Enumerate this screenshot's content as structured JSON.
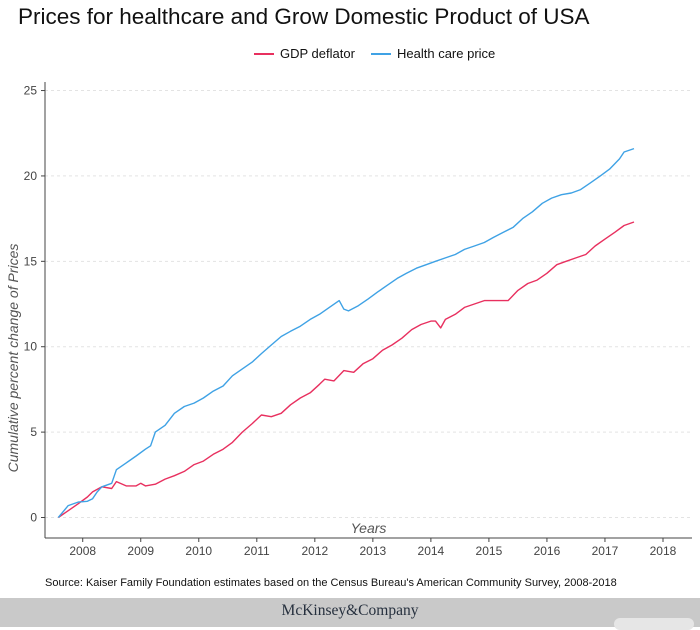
{
  "title": "Prices for healthcare and Grow Domestic Product of USA",
  "legend": [
    {
      "name": "GDP deflator",
      "color": "#e8305f"
    },
    {
      "name": "Health care price",
      "color": "#3fa2e5"
    }
  ],
  "source": "Source: Kaiser Family Foundation estimates based on the Census Bureau's American Community Survey, 2008-2018",
  "footer": {
    "brand": "McKinsey&Company"
  },
  "chart_data": {
    "type": "line",
    "title": "Prices for healthcare and Grow Domestic Product of USA",
    "xlabel": "Years",
    "ylabel": "Cumulative percent change of Prices",
    "xlim": [
      2007.35,
      2018.5
    ],
    "ylim": [
      -1.2,
      25.5
    ],
    "x_ticks": [
      2008,
      2009,
      2010,
      2011,
      2012,
      2013,
      2014,
      2015,
      2016,
      2017,
      2018
    ],
    "y_ticks": [
      0,
      5,
      10,
      15,
      20,
      25
    ],
    "grid": true,
    "legend_position": "top",
    "series": [
      {
        "name": "GDP deflator",
        "color": "#e8305f",
        "points": [
          [
            2007.58,
            0.0
          ],
          [
            2007.75,
            0.4
          ],
          [
            2007.92,
            0.8
          ],
          [
            2008.08,
            1.2
          ],
          [
            2008.17,
            1.5
          ],
          [
            2008.33,
            1.8
          ],
          [
            2008.5,
            1.7
          ],
          [
            2008.58,
            2.1
          ],
          [
            2008.75,
            1.85
          ],
          [
            2008.92,
            1.85
          ],
          [
            2009.0,
            2.0
          ],
          [
            2009.08,
            1.85
          ],
          [
            2009.25,
            1.95
          ],
          [
            2009.42,
            2.25
          ],
          [
            2009.58,
            2.45
          ],
          [
            2009.75,
            2.7
          ],
          [
            2009.92,
            3.1
          ],
          [
            2010.08,
            3.3
          ],
          [
            2010.25,
            3.7
          ],
          [
            2010.42,
            4.0
          ],
          [
            2010.58,
            4.4
          ],
          [
            2010.75,
            5.0
          ],
          [
            2010.92,
            5.5
          ],
          [
            2011.08,
            6.0
          ],
          [
            2011.25,
            5.9
          ],
          [
            2011.42,
            6.1
          ],
          [
            2011.58,
            6.6
          ],
          [
            2011.75,
            7.0
          ],
          [
            2011.92,
            7.3
          ],
          [
            2012.08,
            7.8
          ],
          [
            2012.17,
            8.1
          ],
          [
            2012.33,
            8.0
          ],
          [
            2012.5,
            8.6
          ],
          [
            2012.67,
            8.5
          ],
          [
            2012.83,
            9.0
          ],
          [
            2013.0,
            9.3
          ],
          [
            2013.17,
            9.8
          ],
          [
            2013.33,
            10.1
          ],
          [
            2013.5,
            10.5
          ],
          [
            2013.67,
            11.0
          ],
          [
            2013.83,
            11.3
          ],
          [
            2014.0,
            11.5
          ],
          [
            2014.08,
            11.5
          ],
          [
            2014.17,
            11.1
          ],
          [
            2014.25,
            11.6
          ],
          [
            2014.42,
            11.9
          ],
          [
            2014.58,
            12.3
          ],
          [
            2014.75,
            12.5
          ],
          [
            2014.92,
            12.7
          ],
          [
            2015.17,
            12.7
          ],
          [
            2015.33,
            12.7
          ],
          [
            2015.5,
            13.3
          ],
          [
            2015.67,
            13.7
          ],
          [
            2015.83,
            13.9
          ],
          [
            2016.0,
            14.3
          ],
          [
            2016.17,
            14.8
          ],
          [
            2016.33,
            15.0
          ],
          [
            2016.5,
            15.2
          ],
          [
            2016.67,
            15.4
          ],
          [
            2016.83,
            15.9
          ],
          [
            2017.0,
            16.3
          ],
          [
            2017.17,
            16.7
          ],
          [
            2017.33,
            17.1
          ],
          [
            2017.5,
            17.3
          ]
        ]
      },
      {
        "name": "Health care price",
        "color": "#3fa2e5",
        "points": [
          [
            2007.58,
            0.0
          ],
          [
            2007.75,
            0.7
          ],
          [
            2007.92,
            0.9
          ],
          [
            2008.08,
            0.95
          ],
          [
            2008.17,
            1.1
          ],
          [
            2008.25,
            1.5
          ],
          [
            2008.33,
            1.8
          ],
          [
            2008.5,
            2.0
          ],
          [
            2008.58,
            2.8
          ],
          [
            2008.75,
            3.2
          ],
          [
            2008.92,
            3.6
          ],
          [
            2009.08,
            4.0
          ],
          [
            2009.17,
            4.2
          ],
          [
            2009.25,
            5.0
          ],
          [
            2009.42,
            5.4
          ],
          [
            2009.58,
            6.1
          ],
          [
            2009.75,
            6.5
          ],
          [
            2009.92,
            6.7
          ],
          [
            2010.08,
            7.0
          ],
          [
            2010.25,
            7.4
          ],
          [
            2010.42,
            7.7
          ],
          [
            2010.58,
            8.3
          ],
          [
            2010.75,
            8.7
          ],
          [
            2010.92,
            9.1
          ],
          [
            2011.08,
            9.6
          ],
          [
            2011.25,
            10.1
          ],
          [
            2011.42,
            10.6
          ],
          [
            2011.58,
            10.9
          ],
          [
            2011.75,
            11.2
          ],
          [
            2011.92,
            11.6
          ],
          [
            2012.08,
            11.9
          ],
          [
            2012.25,
            12.3
          ],
          [
            2012.42,
            12.7
          ],
          [
            2012.5,
            12.2
          ],
          [
            2012.58,
            12.1
          ],
          [
            2012.75,
            12.4
          ],
          [
            2012.92,
            12.8
          ],
          [
            2013.08,
            13.2
          ],
          [
            2013.25,
            13.6
          ],
          [
            2013.42,
            14.0
          ],
          [
            2013.58,
            14.3
          ],
          [
            2013.75,
            14.6
          ],
          [
            2013.92,
            14.8
          ],
          [
            2014.08,
            15.0
          ],
          [
            2014.25,
            15.2
          ],
          [
            2014.42,
            15.4
          ],
          [
            2014.58,
            15.7
          ],
          [
            2014.75,
            15.9
          ],
          [
            2014.92,
            16.1
          ],
          [
            2015.08,
            16.4
          ],
          [
            2015.25,
            16.7
          ],
          [
            2015.42,
            17.0
          ],
          [
            2015.58,
            17.5
          ],
          [
            2015.75,
            17.9
          ],
          [
            2015.92,
            18.4
          ],
          [
            2016.08,
            18.7
          ],
          [
            2016.25,
            18.9
          ],
          [
            2016.42,
            19.0
          ],
          [
            2016.58,
            19.2
          ],
          [
            2016.75,
            19.6
          ],
          [
            2016.92,
            20.0
          ],
          [
            2017.08,
            20.4
          ],
          [
            2017.25,
            21.0
          ],
          [
            2017.33,
            21.4
          ],
          [
            2017.5,
            21.6
          ]
        ]
      }
    ]
  }
}
